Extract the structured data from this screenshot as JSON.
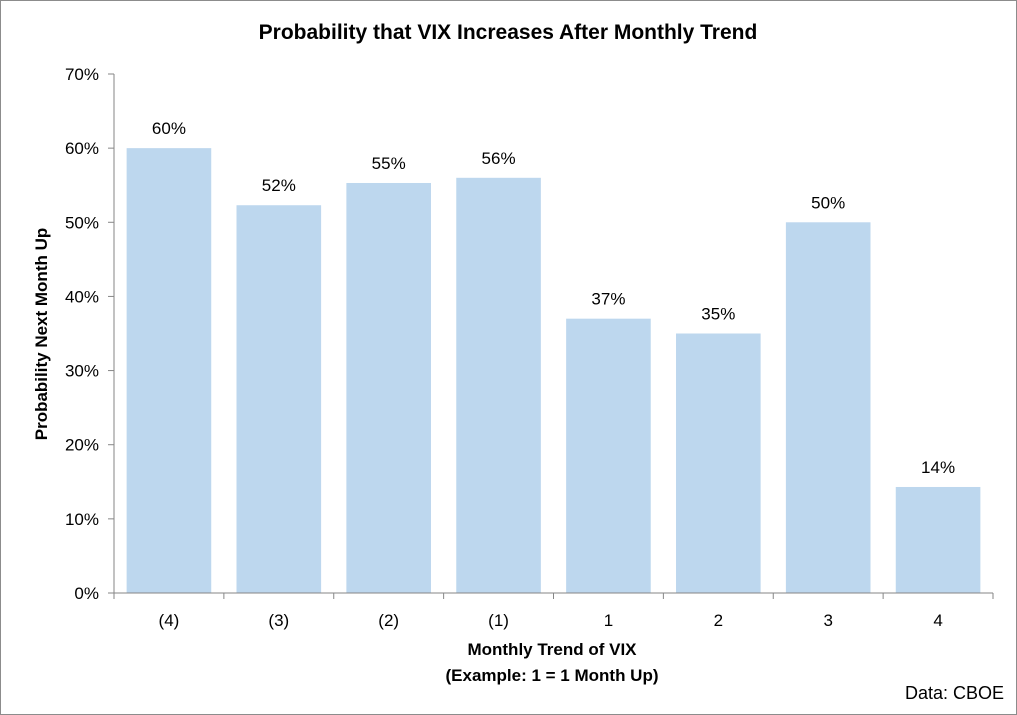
{
  "chart_data": {
    "type": "bar",
    "title": "Probability that VIX Increases After Monthly Trend",
    "xlabel": "Monthly Trend of VIX",
    "xlabel_line2": "(Example: 1 = 1 Month Up)",
    "ylabel": "Probability Next Month Up",
    "categories": [
      "(4)",
      "(3)",
      "(2)",
      "(1)",
      "1",
      "2",
      "3",
      "4"
    ],
    "values": [
      0.6,
      0.523,
      0.553,
      0.56,
      0.37,
      0.35,
      0.5,
      0.143
    ],
    "data_labels": [
      "60%",
      "52%",
      "55%",
      "56%",
      "37%",
      "35%",
      "50%",
      "14%"
    ],
    "ylim": [
      0,
      0.7
    ],
    "yticks": [
      0,
      0.1,
      0.2,
      0.3,
      0.4,
      0.5,
      0.6,
      0.7
    ],
    "ytick_labels": [
      "0%",
      "10%",
      "20%",
      "30%",
      "40%",
      "50%",
      "60%",
      "70%"
    ],
    "grid": false,
    "legend": "none",
    "bar_color": "#bdd7ee",
    "axis_color": "#868686",
    "source_note": "Data: CBOE"
  }
}
